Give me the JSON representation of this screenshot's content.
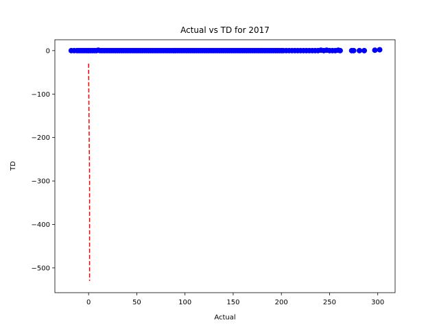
{
  "chart_data": {
    "type": "scatter",
    "title": "Actual vs TD for 2017",
    "xlabel": "Actual",
    "ylabel": "TD",
    "xlim": [
      -35,
      318
    ],
    "ylim": [
      -557,
      25
    ],
    "xticks": [
      0,
      50,
      100,
      150,
      200,
      250,
      300
    ],
    "yticks": [
      0,
      -100,
      -200,
      -300,
      -400,
      -500
    ],
    "xtick_labels": [
      "0",
      "50",
      "100",
      "150",
      "200",
      "250",
      "300"
    ],
    "ytick_labels": [
      "0",
      "−100",
      "−200",
      "−300",
      "−400",
      "−500"
    ],
    "grid": false,
    "legend": "none",
    "colors": {
      "points": "#0000ff",
      "line": "#ff0000",
      "axes": "#000000"
    },
    "series": [
      {
        "type": "scatter",
        "color": "#0000ff",
        "points": [
          [
            -18,
            0
          ],
          [
            -15,
            0
          ],
          [
            -12,
            0
          ],
          [
            -10,
            0
          ],
          [
            -8,
            0
          ],
          [
            -6,
            0
          ],
          [
            -4,
            0
          ],
          [
            -2,
            0
          ],
          [
            0,
            0
          ],
          [
            2,
            0
          ],
          [
            4,
            0
          ],
          [
            6,
            0
          ],
          [
            8,
            0
          ],
          [
            10,
            1
          ],
          [
            12,
            0
          ],
          [
            14,
            0
          ],
          [
            16,
            0
          ],
          [
            18,
            0
          ],
          [
            20,
            0
          ],
          [
            22,
            0
          ],
          [
            24,
            0
          ],
          [
            26,
            0
          ],
          [
            28,
            0
          ],
          [
            30,
            0
          ],
          [
            32,
            0
          ],
          [
            34,
            0
          ],
          [
            36,
            0
          ],
          [
            38,
            0
          ],
          [
            40,
            0
          ],
          [
            42,
            0
          ],
          [
            44,
            0
          ],
          [
            46,
            0
          ],
          [
            48,
            0
          ],
          [
            50,
            0
          ],
          [
            52,
            0
          ],
          [
            54,
            0
          ],
          [
            56,
            0
          ],
          [
            58,
            0
          ],
          [
            60,
            0
          ],
          [
            62,
            0
          ],
          [
            64,
            0
          ],
          [
            66,
            0
          ],
          [
            68,
            0
          ],
          [
            70,
            0
          ],
          [
            72,
            0
          ],
          [
            74,
            0
          ],
          [
            76,
            0
          ],
          [
            78,
            0
          ],
          [
            80,
            0
          ],
          [
            82,
            0
          ],
          [
            84,
            0
          ],
          [
            86,
            0
          ],
          [
            88,
            0
          ],
          [
            90,
            0
          ],
          [
            92,
            0
          ],
          [
            94,
            0
          ],
          [
            96,
            0
          ],
          [
            98,
            0
          ],
          [
            100,
            0
          ],
          [
            102,
            0
          ],
          [
            104,
            0
          ],
          [
            106,
            0
          ],
          [
            108,
            0
          ],
          [
            110,
            0
          ],
          [
            112,
            0
          ],
          [
            114,
            0
          ],
          [
            116,
            0
          ],
          [
            118,
            0
          ],
          [
            120,
            0
          ],
          [
            122,
            0
          ],
          [
            124,
            0
          ],
          [
            126,
            0
          ],
          [
            128,
            0
          ],
          [
            130,
            0
          ],
          [
            132,
            0
          ],
          [
            134,
            0
          ],
          [
            136,
            0
          ],
          [
            138,
            0
          ],
          [
            140,
            0
          ],
          [
            142,
            0
          ],
          [
            144,
            0
          ],
          [
            146,
            0
          ],
          [
            148,
            0
          ],
          [
            150,
            0
          ],
          [
            152,
            0
          ],
          [
            154,
            0
          ],
          [
            156,
            0
          ],
          [
            158,
            0
          ],
          [
            160,
            0
          ],
          [
            162,
            0
          ],
          [
            164,
            0
          ],
          [
            166,
            0
          ],
          [
            168,
            0
          ],
          [
            170,
            0
          ],
          [
            172,
            0
          ],
          [
            174,
            0
          ],
          [
            176,
            0
          ],
          [
            178,
            0
          ],
          [
            180,
            0
          ],
          [
            182,
            0
          ],
          [
            184,
            0
          ],
          [
            186,
            0
          ],
          [
            188,
            0
          ],
          [
            190,
            0
          ],
          [
            192,
            0
          ],
          [
            194,
            0
          ],
          [
            196,
            0
          ],
          [
            198,
            0
          ],
          [
            200,
            0
          ],
          [
            202,
            0
          ],
          [
            205,
            0
          ],
          [
            208,
            0
          ],
          [
            211,
            0
          ],
          [
            214,
            0
          ],
          [
            217,
            0
          ],
          [
            220,
            0
          ],
          [
            223,
            0
          ],
          [
            226,
            0
          ],
          [
            229,
            0
          ],
          [
            232,
            0
          ],
          [
            235,
            0
          ],
          [
            238,
            0
          ],
          [
            241,
            1
          ],
          [
            244,
            0
          ],
          [
            247,
            1
          ],
          [
            250,
            0
          ],
          [
            253,
            0
          ],
          [
            256,
            0
          ],
          [
            259,
            1
          ],
          [
            261,
            0
          ],
          [
            273,
            0
          ],
          [
            275,
            0
          ],
          [
            281,
            0
          ],
          [
            286,
            0
          ],
          [
            297,
            1
          ],
          [
            302,
            2
          ]
        ]
      },
      {
        "type": "line",
        "style": "dashed",
        "color": "#ff0000",
        "x": [
          0,
          0.3,
          0.6,
          1.0,
          1.0,
          1.0,
          1.0
        ],
        "y": [
          -30,
          -120,
          -200,
          -290,
          -380,
          -460,
          -530
        ]
      }
    ]
  }
}
